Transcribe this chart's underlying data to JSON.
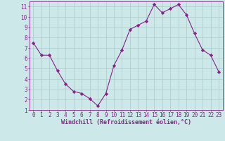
{
  "x": [
    0,
    1,
    2,
    3,
    4,
    5,
    6,
    7,
    8,
    9,
    10,
    11,
    12,
    13,
    14,
    15,
    16,
    17,
    18,
    19,
    20,
    21,
    22,
    23
  ],
  "y": [
    7.5,
    6.3,
    6.3,
    4.8,
    3.5,
    2.8,
    2.6,
    2.1,
    1.4,
    2.6,
    5.3,
    6.8,
    8.8,
    9.2,
    9.6,
    11.2,
    10.4,
    10.8,
    11.2,
    10.2,
    8.4,
    6.8,
    6.3,
    4.7
  ],
  "line_color": "#882288",
  "marker": "D",
  "marker_size": 2.2,
  "bg_color": "#cce8e8",
  "grid_color": "#aacccc",
  "axis_color": "#882288",
  "tick_color": "#882288",
  "xlabel": "Windchill (Refroidissement éolien,°C)",
  "xlim": [
    -0.5,
    23.5
  ],
  "ylim": [
    1,
    11.5
  ],
  "yticks": [
    1,
    2,
    3,
    4,
    5,
    6,
    7,
    8,
    9,
    10,
    11
  ],
  "xticks": [
    0,
    1,
    2,
    3,
    4,
    5,
    6,
    7,
    8,
    9,
    10,
    11,
    12,
    13,
    14,
    15,
    16,
    17,
    18,
    19,
    20,
    21,
    22,
    23
  ],
  "label_fontsize": 5.5,
  "tick_fontsize": 5.5,
  "xlabel_fontsize": 6.0
}
